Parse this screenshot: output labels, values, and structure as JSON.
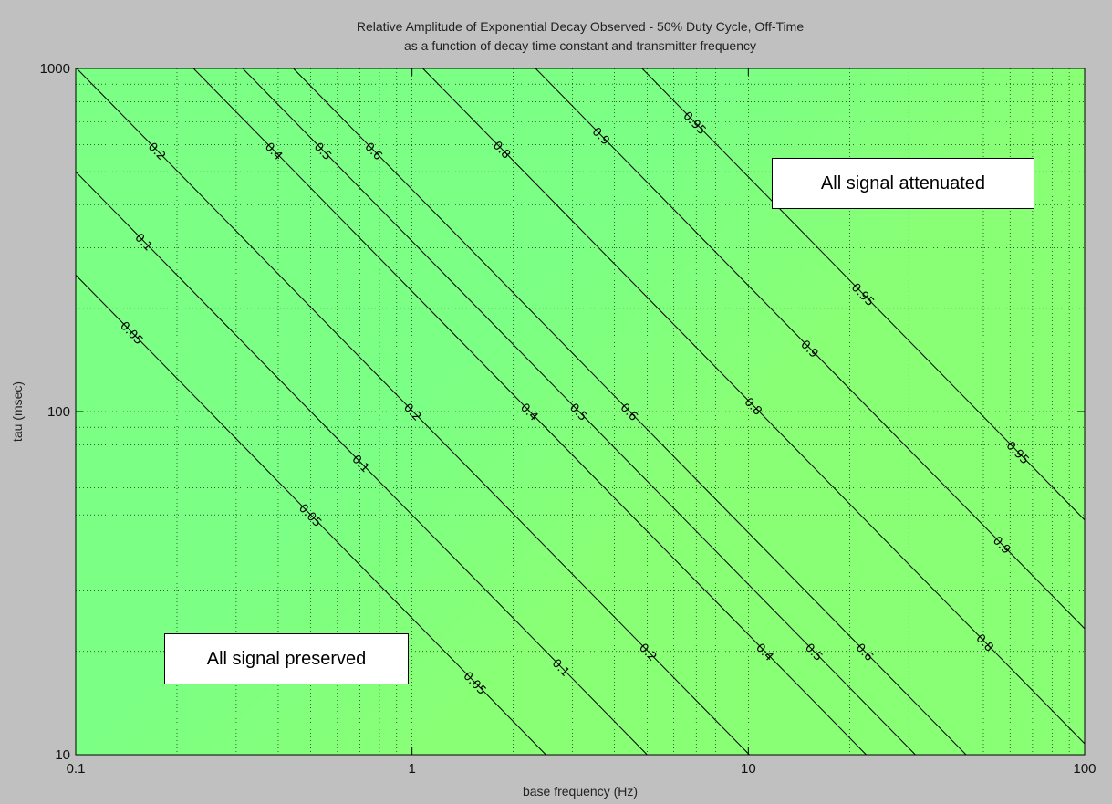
{
  "chart_data": {
    "type": "heatmap",
    "title": "Relative Amplitude of Exponential Decay Observed - 50% Duty Cycle, Off-Time",
    "subtitle": "as a function of decay time constant and transmitter frequency",
    "xlabel": "base frequency (Hz)",
    "ylabel": "tau (msec)",
    "x_scale": "log",
    "y_scale": "log",
    "xlim": [
      0.1,
      100
    ],
    "ylim": [
      10,
      1000
    ],
    "x_ticks": [
      "0.1",
      "1",
      "10",
      "100"
    ],
    "y_ticks": [
      "10",
      "100",
      "1000"
    ],
    "grid": true,
    "colormap": "jet",
    "contour_levels": [
      0.05,
      0.1,
      0.2,
      0.4,
      0.5,
      0.6,
      0.8,
      0.9,
      0.95
    ],
    "contour_labels": [
      "0.05",
      "0.1",
      "0.2",
      "0.4",
      "0.5",
      "0.6",
      "0.8",
      "0.9",
      "0.95"
    ],
    "annotations": [
      "All signal attenuated",
      "All signal preserved"
    ]
  },
  "colors": {
    "background": "#c0c0c0",
    "high": "#800000",
    "low": "#00008f",
    "contour": "#000000"
  }
}
